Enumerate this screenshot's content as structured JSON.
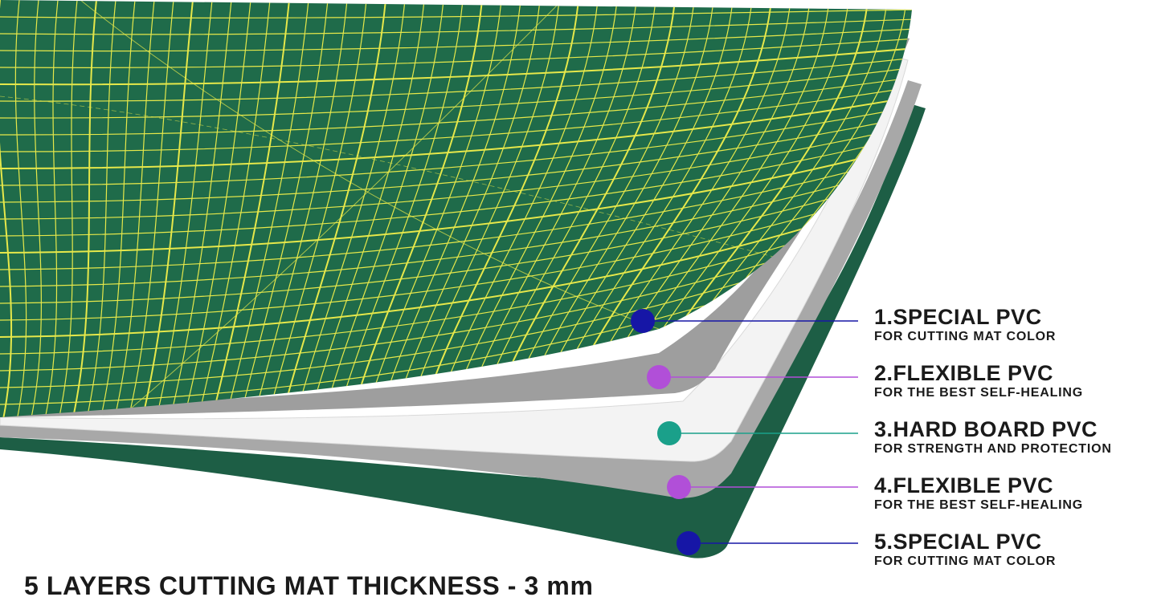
{
  "colors": {
    "mat_green": "#1f6b4a",
    "grid_yellow": "#e6e84a",
    "gray_layer": "#a9a9a9",
    "white_layer": "#f4f4f4",
    "dot_blue": "#1616a6",
    "dot_purple": "#b14fd8",
    "dot_teal": "#1aa08a"
  },
  "layers": [
    {
      "title": "1.SPECIAL PVC",
      "subtitle": "FOR CUTTING MAT COLOR",
      "dot_color": "#1616a6"
    },
    {
      "title": "2.FLEXIBLE PVC",
      "subtitle": "FOR THE BEST SELF-HEALING",
      "dot_color": "#b14fd8"
    },
    {
      "title": "3.HARD BOARD PVC",
      "subtitle": "FOR STRENGTH AND PROTECTION",
      "dot_color": "#1aa08a"
    },
    {
      "title": "4.FLEXIBLE PVC",
      "subtitle": "FOR THE BEST SELF-HEALING",
      "dot_color": "#b14fd8"
    },
    {
      "title": "5.SPECIAL PVC",
      "subtitle": "FOR CUTTING MAT COLOR",
      "dot_color": "#1616a6"
    }
  ],
  "caption": "5 LAYERS CUTTING MAT THICKNESS - 3 mm"
}
